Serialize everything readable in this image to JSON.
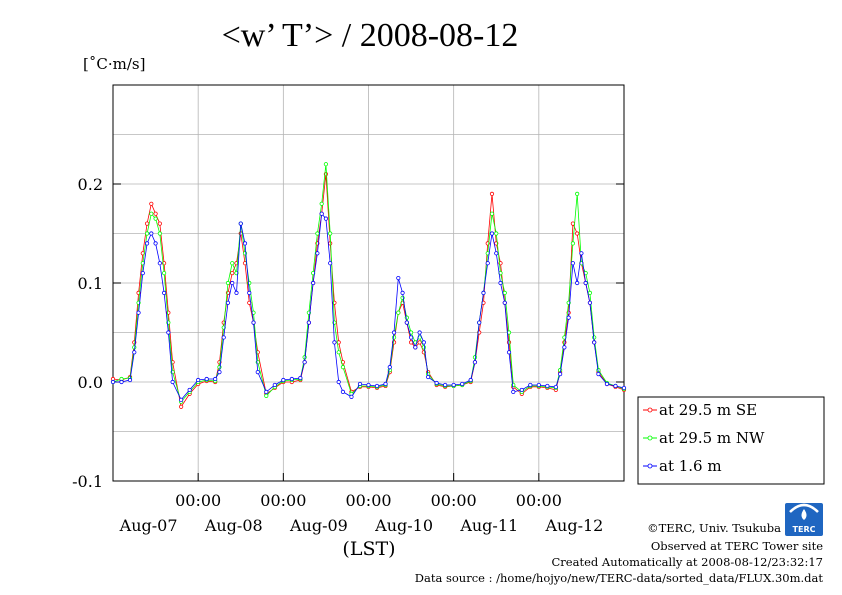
{
  "chart_data": {
    "type": "line",
    "title": "<w’ T’> / 2008-08-12",
    "ylabel": "[˚C·m/s]",
    "xlabel": "(LST)",
    "ylim": [
      -0.1,
      0.3
    ],
    "yticks": [
      {
        "value": -0.1,
        "label": "-0.1"
      },
      {
        "value": 0.0,
        "label": "0.0"
      },
      {
        "value": 0.1,
        "label": "0.1"
      },
      {
        "value": 0.2,
        "label": "0.2"
      }
    ],
    "xlim": [
      0,
      6
    ],
    "x_unit": "days from 2008-08-07 00:00 LST",
    "x_time_ticks": [
      {
        "x": 1,
        "label": "00:00"
      },
      {
        "x": 2,
        "label": "00:00"
      },
      {
        "x": 3,
        "label": "00:00"
      },
      {
        "x": 4,
        "label": "00:00"
      },
      {
        "x": 5,
        "label": "00:00"
      }
    ],
    "x_date_labels": [
      {
        "x": 0.5,
        "label": "Aug-07"
      },
      {
        "x": 1.5,
        "label": "Aug-08"
      },
      {
        "x": 2.5,
        "label": "Aug-09"
      },
      {
        "x": 3.5,
        "label": "Aug-10"
      },
      {
        "x": 4.5,
        "label": "Aug-11"
      },
      {
        "x": 5.5,
        "label": "Aug-12"
      }
    ],
    "grid": true,
    "legend_position": "right",
    "series": [
      {
        "name": "at 29.5 m SE",
        "color": "#ff0000",
        "x": [
          0.0,
          0.1,
          0.2,
          0.25,
          0.3,
          0.35,
          0.4,
          0.45,
          0.5,
          0.55,
          0.6,
          0.65,
          0.7,
          0.8,
          0.9,
          1.0,
          1.1,
          1.2,
          1.25,
          1.3,
          1.35,
          1.4,
          1.45,
          1.5,
          1.55,
          1.6,
          1.65,
          1.7,
          1.8,
          1.9,
          2.0,
          2.1,
          2.2,
          2.25,
          2.3,
          2.35,
          2.4,
          2.45,
          2.5,
          2.55,
          2.6,
          2.65,
          2.7,
          2.8,
          2.9,
          3.0,
          3.1,
          3.2,
          3.25,
          3.3,
          3.35,
          3.4,
          3.45,
          3.5,
          3.55,
          3.6,
          3.65,
          3.7,
          3.8,
          3.9,
          4.0,
          4.1,
          4.2,
          4.25,
          4.3,
          4.35,
          4.4,
          4.45,
          4.5,
          4.55,
          4.6,
          4.65,
          4.7,
          4.8,
          4.9,
          5.0,
          5.1,
          5.2,
          5.25,
          5.3,
          5.35,
          5.4,
          5.45,
          5.5,
          5.55,
          5.6,
          5.65,
          5.7,
          5.8,
          5.9,
          6.0
        ],
        "y": [
          0.003,
          0.002,
          0.005,
          0.04,
          0.09,
          0.13,
          0.16,
          0.18,
          0.17,
          0.16,
          0.12,
          0.07,
          0.02,
          -0.025,
          -0.012,
          -0.002,
          0.001,
          0.0,
          0.02,
          0.06,
          0.09,
          0.11,
          0.12,
          0.15,
          0.12,
          0.08,
          0.06,
          0.03,
          -0.012,
          -0.006,
          0.0,
          0.0,
          0.002,
          0.02,
          0.06,
          0.1,
          0.14,
          0.17,
          0.21,
          0.14,
          0.08,
          0.04,
          0.02,
          -0.01,
          -0.005,
          -0.005,
          -0.006,
          -0.004,
          0.01,
          0.04,
          0.07,
          0.08,
          0.06,
          0.04,
          0.035,
          0.04,
          0.03,
          0.01,
          -0.003,
          -0.005,
          -0.004,
          -0.003,
          0.0,
          0.02,
          0.05,
          0.08,
          0.14,
          0.19,
          0.14,
          0.12,
          0.08,
          0.04,
          -0.005,
          -0.012,
          -0.005,
          -0.005,
          -0.006,
          -0.008,
          0.01,
          0.04,
          0.07,
          0.16,
          0.15,
          0.12,
          0.1,
          0.08,
          0.04,
          0.01,
          -0.002,
          -0.005,
          -0.008
        ]
      },
      {
        "name": "at 29.5 m NW",
        "color": "#00ff00",
        "x": [
          0.0,
          0.1,
          0.2,
          0.25,
          0.3,
          0.35,
          0.4,
          0.45,
          0.5,
          0.55,
          0.6,
          0.65,
          0.7,
          0.8,
          0.9,
          1.0,
          1.1,
          1.2,
          1.25,
          1.3,
          1.35,
          1.4,
          1.45,
          1.5,
          1.55,
          1.6,
          1.65,
          1.7,
          1.8,
          1.9,
          2.0,
          2.1,
          2.2,
          2.25,
          2.3,
          2.35,
          2.4,
          2.45,
          2.5,
          2.55,
          2.6,
          2.65,
          2.7,
          2.8,
          2.9,
          3.0,
          3.1,
          3.2,
          3.25,
          3.3,
          3.35,
          3.4,
          3.45,
          3.5,
          3.55,
          3.6,
          3.65,
          3.7,
          3.8,
          3.9,
          4.0,
          4.1,
          4.2,
          4.25,
          4.3,
          4.35,
          4.4,
          4.45,
          4.5,
          4.55,
          4.6,
          4.65,
          4.7,
          4.8,
          4.9,
          5.0,
          5.1,
          5.2,
          5.25,
          5.3,
          5.35,
          5.4,
          5.45,
          5.5,
          5.55,
          5.6,
          5.65,
          5.7,
          5.8,
          5.9,
          6.0
        ],
        "y": [
          0.0,
          0.003,
          0.004,
          0.035,
          0.08,
          0.12,
          0.15,
          0.17,
          0.165,
          0.15,
          0.11,
          0.06,
          0.01,
          -0.02,
          -0.01,
          0.0,
          0.002,
          0.001,
          0.015,
          0.055,
          0.1,
          0.12,
          0.11,
          0.16,
          0.13,
          0.1,
          0.07,
          0.02,
          -0.014,
          -0.005,
          0.001,
          0.002,
          0.003,
          0.025,
          0.07,
          0.11,
          0.15,
          0.18,
          0.22,
          0.15,
          0.06,
          0.03,
          0.015,
          -0.012,
          -0.004,
          -0.004,
          -0.005,
          -0.003,
          0.012,
          0.045,
          0.07,
          0.085,
          0.065,
          0.05,
          0.04,
          0.045,
          0.035,
          0.008,
          -0.002,
          -0.004,
          -0.004,
          -0.003,
          0.001,
          0.025,
          0.06,
          0.09,
          0.13,
          0.17,
          0.15,
          0.11,
          0.09,
          0.05,
          -0.003,
          -0.01,
          -0.004,
          -0.004,
          -0.005,
          -0.006,
          0.012,
          0.045,
          0.08,
          0.14,
          0.19,
          0.12,
          0.11,
          0.09,
          0.045,
          0.012,
          -0.001,
          -0.004,
          -0.007
        ]
      },
      {
        "name": "at 1.6 m",
        "color": "#0000ff",
        "x": [
          0.0,
          0.1,
          0.2,
          0.25,
          0.3,
          0.35,
          0.4,
          0.45,
          0.5,
          0.55,
          0.6,
          0.65,
          0.7,
          0.8,
          0.9,
          1.0,
          1.1,
          1.2,
          1.25,
          1.3,
          1.35,
          1.4,
          1.45,
          1.5,
          1.55,
          1.6,
          1.65,
          1.7,
          1.8,
          1.9,
          2.0,
          2.1,
          2.2,
          2.25,
          2.3,
          2.35,
          2.4,
          2.45,
          2.5,
          2.55,
          2.6,
          2.65,
          2.7,
          2.8,
          2.9,
          3.0,
          3.1,
          3.2,
          3.25,
          3.3,
          3.35,
          3.4,
          3.45,
          3.5,
          3.55,
          3.6,
          3.65,
          3.7,
          3.8,
          3.9,
          4.0,
          4.1,
          4.2,
          4.25,
          4.3,
          4.35,
          4.4,
          4.45,
          4.5,
          4.55,
          4.6,
          4.65,
          4.7,
          4.8,
          4.9,
          5.0,
          5.1,
          5.2,
          5.25,
          5.3,
          5.35,
          5.4,
          5.45,
          5.5,
          5.55,
          5.6,
          5.65,
          5.7,
          5.8,
          5.9,
          6.0
        ],
        "y": [
          0.0,
          0.0,
          0.002,
          0.03,
          0.07,
          0.11,
          0.14,
          0.15,
          0.14,
          0.12,
          0.09,
          0.05,
          0.0,
          -0.018,
          -0.008,
          0.002,
          0.003,
          0.003,
          0.01,
          0.045,
          0.08,
          0.1,
          0.09,
          0.16,
          0.14,
          0.09,
          0.06,
          0.01,
          -0.01,
          -0.003,
          0.002,
          0.003,
          0.004,
          0.02,
          0.06,
          0.1,
          0.13,
          0.17,
          0.165,
          0.12,
          0.04,
          0.0,
          -0.01,
          -0.015,
          -0.002,
          -0.003,
          -0.004,
          -0.002,
          0.015,
          0.05,
          0.105,
          0.09,
          0.06,
          0.045,
          0.035,
          0.05,
          0.04,
          0.005,
          -0.001,
          -0.003,
          -0.003,
          -0.002,
          0.002,
          0.02,
          0.06,
          0.09,
          0.12,
          0.15,
          0.13,
          0.1,
          0.08,
          0.03,
          -0.01,
          -0.008,
          -0.003,
          -0.003,
          -0.004,
          -0.005,
          0.008,
          0.035,
          0.065,
          0.12,
          0.1,
          0.13,
          0.1,
          0.08,
          0.04,
          0.008,
          -0.002,
          -0.004,
          -0.006
        ]
      }
    ]
  },
  "footer": {
    "copyright": "©TERC, Univ. Tsukuba",
    "observed": "Observed at TERC Tower site",
    "created": "Created Automatically at 2008-08-12/23:32:17",
    "source": "Data source : /home/hojyo/new/TERC-data/sorted_data/FLUX.30m.dat",
    "logo_text": "TERC"
  }
}
